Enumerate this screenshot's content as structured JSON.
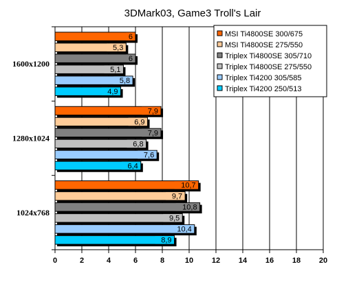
{
  "chart_data": {
    "type": "bar",
    "orientation": "horizontal",
    "title": "3DMark03, Game3 Troll's Lair",
    "xlabel": "",
    "ylabel": "",
    "xlim": [
      0,
      20
    ],
    "xticks": [
      "0",
      "2",
      "4",
      "6",
      "8",
      "10",
      "12",
      "14",
      "16",
      "18",
      "20"
    ],
    "grid": "vertical",
    "legend_position": "top-right",
    "categories": [
      "1600x1200",
      "1280x1024",
      "1024x768"
    ],
    "series": [
      {
        "name": "MSI Ti4800SE 300/675",
        "color": "#FF6600",
        "values": [
          6,
          7.9,
          10.7
        ],
        "labels": [
          "6",
          "7,9",
          "10,7"
        ]
      },
      {
        "name": "MSI Ti4800SE 275/550",
        "color": "#FFCC99",
        "values": [
          5.3,
          6.9,
          9.7
        ],
        "labels": [
          "5,3",
          "6,9",
          "9,7"
        ]
      },
      {
        "name": "Triplex Ti4800SE 305/710",
        "color": "#808080",
        "values": [
          6,
          7.9,
          10.8
        ],
        "labels": [
          "6",
          "7,9",
          "10,8"
        ]
      },
      {
        "name": "Triplex Ti4800SE 275/550",
        "color": "#C0C0C0",
        "values": [
          5.1,
          6.8,
          9.5
        ],
        "labels": [
          "5,1",
          "6,8",
          "9,5"
        ]
      },
      {
        "name": "Triplex Ti4200 305/585",
        "color": "#99CCFF",
        "values": [
          5.8,
          7.6,
          10.4
        ],
        "labels": [
          "5,8",
          "7,6",
          "10,4"
        ]
      },
      {
        "name": "Triplex Ti4200 250/513",
        "color": "#00CCFF",
        "values": [
          4.9,
          6.4,
          8.9
        ],
        "labels": [
          "4,9",
          "6,4",
          "8,9"
        ]
      }
    ]
  }
}
